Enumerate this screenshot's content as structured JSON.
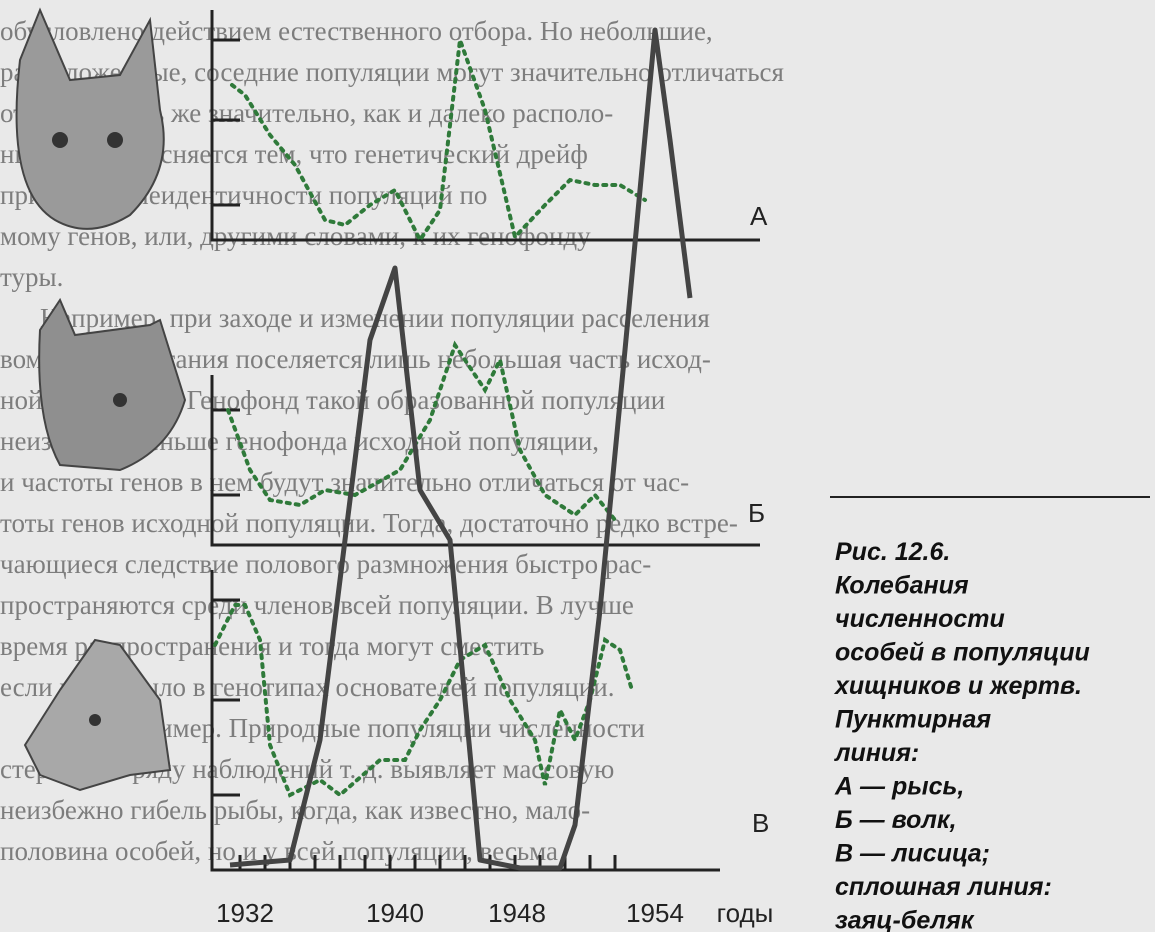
{
  "page_text": {
    "lines": [
      "обусловлено действием естественного отбора. Но небольшие,",
      "расположенные, соседние популяции могут значительно отличаться",
      "от друга столь же значительно, как и далеко располо-",
      "ные. Это объясняется тем, что генетический дрейф",
      "приводит к неидентичности популяций по",
      "мому генов, или, другими словами, к их генофонду",
      "туры.",
      "Например, при заходе и изменении популяции расселения",
      "вом месте обитания поселяется лишь небольшая часть исход-",
      "ной популяции. Генофонд такой образованной популяции",
      "неизбежно меньше генофонда исходной популяции,",
      "и частоты генов в нем будут значительно отличаться от час-",
      "тоты генов исходной популяции. Тогда, достаточно редко встре-",
      "чающиеся следствие полового размножения быстро рас-",
      "пространяются среди членов всей популяции. В лучше",
      "время распространения и тогда могут сместить",
      "если их не было в генотипах основателей популяции.",
      "Другой пример. Природные популяции численности",
      "стертые по ряду наблюдений т. д. выявляет массовую",
      "неизбежно гибель рыбы, когда, как известно, мало-",
      "половина особей, но и у всей популяции, весьма"
    ]
  },
  "figure": {
    "panel_labels": [
      "А",
      "Б",
      "В"
    ],
    "x_labels": [
      "1932",
      "1940",
      "1948",
      "1954",
      "годы"
    ]
  },
  "caption": {
    "lines": [
      "Рис. 12.6.",
      "Колебания",
      "численности",
      "особей в популяции",
      "хищников и жертв.",
      "Пунктирная",
      "линия:",
      "А — рысь,",
      "Б — волк,",
      "В — лисица;",
      "сплошная линия:",
      "заяц-беляк"
    ]
  }
}
